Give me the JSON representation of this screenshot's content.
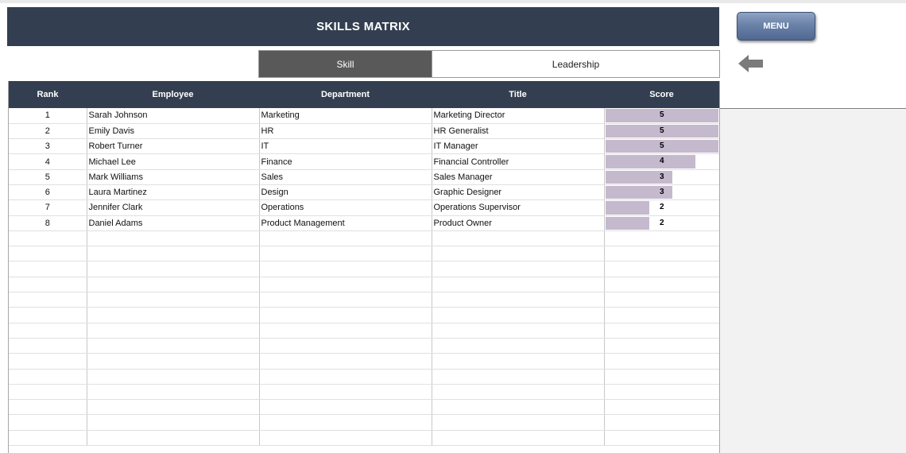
{
  "header": {
    "title": "SKILLS MATRIX"
  },
  "menu": {
    "label": "MENU"
  },
  "tabs": [
    {
      "label": "Skill",
      "active": true
    },
    {
      "label": "Leadership",
      "active": false
    }
  ],
  "back_arrow": {
    "icon": "left-arrow-icon"
  },
  "colors": {
    "header_bg": "#333f50",
    "active_tab_bg": "#595959",
    "score_bar": "#c5b9cd"
  },
  "table": {
    "columns": [
      "Rank",
      "Employee",
      "Department",
      "Title",
      "Score"
    ],
    "score_max": 5,
    "rows": [
      {
        "rank": "1",
        "employee": "Sarah Johnson",
        "department": "Marketing",
        "title": "Marketing Director",
        "score": 5
      },
      {
        "rank": "2",
        "employee": "Emily Davis",
        "department": "HR",
        "title": "HR Generalist",
        "score": 5
      },
      {
        "rank": "3",
        "employee": "Robert Turner",
        "department": "IT",
        "title": "IT Manager",
        "score": 5
      },
      {
        "rank": "4",
        "employee": "Michael Lee",
        "department": "Finance",
        "title": "Financial Controller",
        "score": 4
      },
      {
        "rank": "5",
        "employee": "Mark Williams",
        "department": "Sales",
        "title": "Sales Manager",
        "score": 3
      },
      {
        "rank": "6",
        "employee": "Laura Martinez",
        "department": "Design",
        "title": "Graphic Designer",
        "score": 3
      },
      {
        "rank": "7",
        "employee": "Jennifer Clark",
        "department": "Operations",
        "title": "Operations Supervisor",
        "score": 2
      },
      {
        "rank": "8",
        "employee": "Daniel Adams",
        "department": "Product Management",
        "title": "Product Owner",
        "score": 2
      }
    ]
  }
}
